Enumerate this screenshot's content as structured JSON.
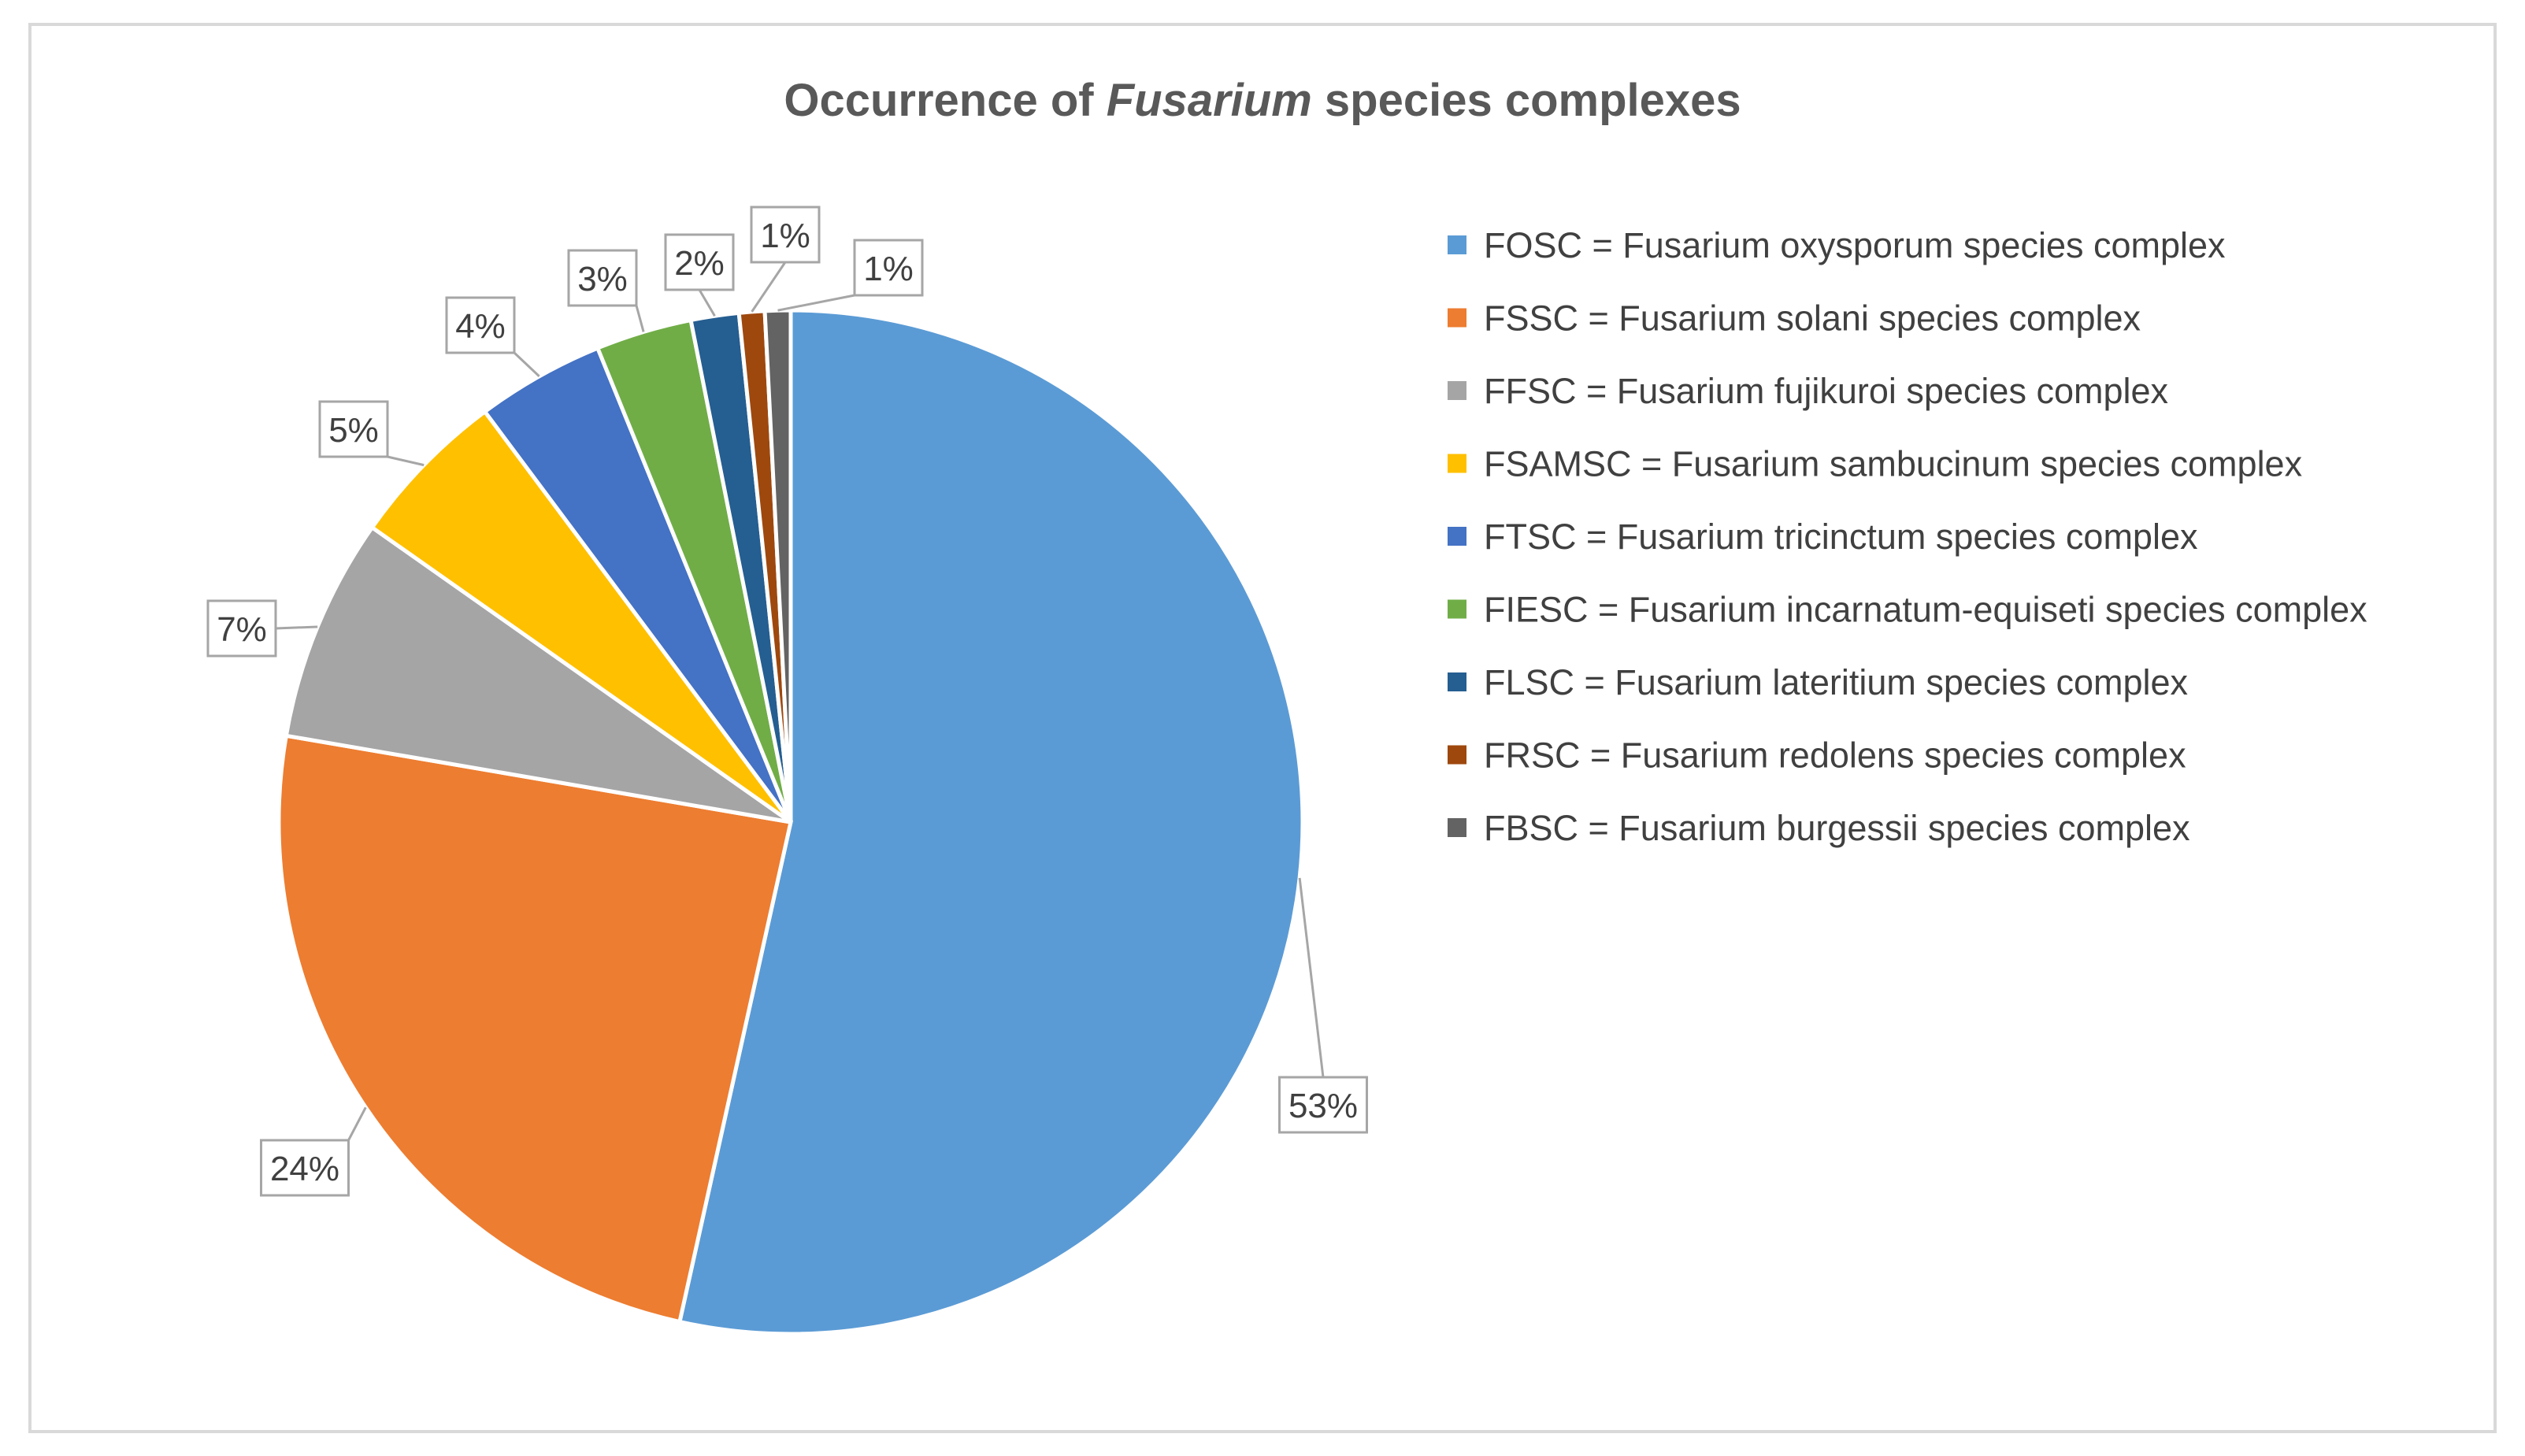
{
  "chart_data": {
    "type": "pie",
    "title_parts": [
      {
        "text": "Occurrence of ",
        "italic": false
      },
      {
        "text": "Fusarium",
        "italic": true
      },
      {
        "text": " species complexes",
        "italic": false
      }
    ],
    "slices": [
      {
        "label": "FOSC = Fusarium oxysporum species complex",
        "value": 53,
        "data_label": "53%",
        "color": "#5B9BD5"
      },
      {
        "label": "FSSC = Fusarium solani species complex",
        "value": 24,
        "data_label": "24%",
        "color": "#ED7D31"
      },
      {
        "label": "FFSC = Fusarium fujikuroi species complex",
        "value": 7,
        "data_label": "7%",
        "color": "#A5A5A5"
      },
      {
        "label": "FSAMSC = Fusarium sambucinum species complex",
        "value": 5,
        "data_label": "5%",
        "color": "#FFC000"
      },
      {
        "label": "FTSC = Fusarium tricinctum species complex",
        "value": 4,
        "data_label": "4%",
        "color": "#4472C4"
      },
      {
        "label": "FIESC = Fusarium incarnatum-equiseti species complex",
        "value": 3,
        "data_label": "3%",
        "color": "#70AD47"
      },
      {
        "label": "FLSC = Fusarium lateritium species complex",
        "value": 1.5,
        "data_label": "2%",
        "color": "#255E91"
      },
      {
        "label": "FRSC = Fusarium redolens species complex",
        "value": 0.8,
        "data_label": "1%",
        "color": "#9E480E"
      },
      {
        "label": "FBSC = Fusarium burgessii species complex",
        "value": 0.8,
        "data_label": "1%",
        "color": "#636363"
      }
    ],
    "start_angle_deg": 0,
    "direction": "clockwise",
    "legend_position": "right",
    "data_labels": "outside-end with callouts"
  }
}
